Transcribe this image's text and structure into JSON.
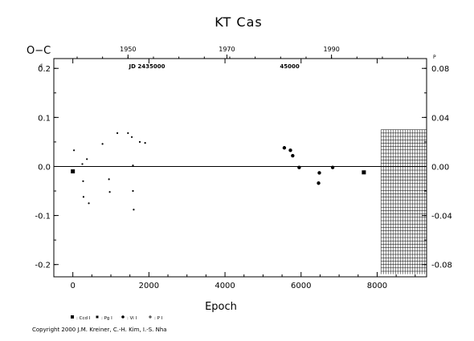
{
  "chart_data": {
    "type": "scatter",
    "title": "KT Cas",
    "xlabel": "Epoch",
    "ylabel": "O−C",
    "ylabel_unit": "d",
    "xlim": [
      -500,
      9300
    ],
    "ylim": [
      -0.225,
      0.22
    ],
    "grid": false,
    "zero_line": true,
    "x_ticks": [
      0,
      2000,
      4000,
      6000,
      8000
    ],
    "x_tick_labels": [
      "0",
      "2000",
      "4000",
      "6000",
      "8000"
    ],
    "y_ticks_left": [
      -0.2,
      -0.1,
      0.0,
      0.1,
      0.2
    ],
    "y_tick_labels_left": [
      "-0.2",
      "-0.1",
      "0.0",
      "0.1",
      "0.2"
    ],
    "y_ticks_right": [
      -0.08,
      -0.04,
      0.0,
      0.04,
      0.08
    ],
    "y_tick_labels_right": [
      "-0.08",
      "-0.04",
      "0.00",
      "0.04",
      "0.08"
    ],
    "right_unit": "P",
    "top_year_ticks": [
      1950,
      1970,
      1990
    ],
    "top_year_epochs": [
      1450,
      4050,
      6800
    ],
    "top_jd_labels": [
      {
        "text": "JD 2435000",
        "epoch": 1950
      },
      {
        "text": "45000",
        "epoch": 5700
      }
    ],
    "hatched_region": {
      "x_start": 8100,
      "x_end": 9300
    },
    "series": [
      {
        "name": "Ccd",
        "marker": "square",
        "points": [
          [
            0,
            -0.01
          ],
          [
            7650,
            -0.012
          ]
        ]
      },
      {
        "name": "Pg",
        "marker": "square-small",
        "points": []
      },
      {
        "name": "Vi",
        "marker": "circle",
        "points": [
          [
            5560,
            0.038
          ],
          [
            5720,
            0.033
          ],
          [
            5780,
            0.022
          ],
          [
            5950,
            -0.002
          ],
          [
            6480,
            -0.013
          ],
          [
            6460,
            -0.034
          ],
          [
            6830,
            -0.002
          ]
        ]
      },
      {
        "name": "P",
        "marker": "dot",
        "points": [
          [
            30,
            0.033
          ],
          [
            250,
            0.005
          ],
          [
            370,
            0.015
          ],
          [
            270,
            -0.03
          ],
          [
            280,
            -0.062
          ],
          [
            420,
            -0.075
          ],
          [
            780,
            0.046
          ],
          [
            950,
            -0.026
          ],
          [
            970,
            -0.052
          ],
          [
            1170,
            0.068
          ],
          [
            1450,
            0.068
          ],
          [
            1550,
            0.06
          ],
          [
            1580,
            0.002
          ],
          [
            1580,
            -0.05
          ],
          [
            1600,
            -0.088
          ],
          [
            1760,
            0.05
          ],
          [
            1900,
            0.048
          ]
        ]
      }
    ],
    "legend": [
      {
        "symbol": "square",
        "label": ": Ccd I"
      },
      {
        "symbol": "square-small",
        "label": ": Pg I"
      },
      {
        "symbol": "circle",
        "label": ": Vi I"
      },
      {
        "symbol": "plus",
        "label": ": P I"
      }
    ],
    "legend_position": "bottom-left"
  },
  "copyright": "Copyright 2000 J.M. Kreiner, C.-H. Kim, I.-S. Nha"
}
